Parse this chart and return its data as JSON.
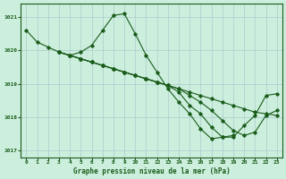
{
  "title": "Graphe pression niveau de la mer (hPa)",
  "bg_color": "#cceedd",
  "grid_color": "#aacccc",
  "line_color": "#1a5c1a",
  "xlim": [
    -0.5,
    23.5
  ],
  "ylim": [
    1016.8,
    1021.4
  ],
  "yticks": [
    1017,
    1018,
    1019,
    1020,
    1021
  ],
  "xticks": [
    0,
    1,
    2,
    3,
    4,
    5,
    6,
    7,
    8,
    9,
    10,
    11,
    12,
    13,
    14,
    15,
    16,
    17,
    18,
    19,
    20,
    21,
    22,
    23
  ],
  "series": [
    {
      "x": [
        0,
        1,
        2,
        3,
        4,
        5,
        6,
        7,
        8,
        9,
        10,
        11,
        12,
        13,
        14,
        15,
        16,
        17,
        18,
        19
      ],
      "y": [
        1020.6,
        1020.25,
        1020.1,
        1019.95,
        1019.85,
        1019.95,
        1020.15,
        1020.6,
        1021.05,
        1021.1,
        1020.5,
        1019.85,
        1019.35,
        1018.85,
        1018.45,
        1018.1,
        1017.65,
        1017.35,
        1017.4,
        1017.45
      ]
    },
    {
      "x": [
        3,
        4,
        5,
        6,
        7,
        8,
        9,
        10,
        11,
        12,
        13,
        14,
        15,
        16,
        17,
        18,
        19,
        20,
        21,
        22,
        23
      ],
      "y": [
        1019.95,
        1019.85,
        1019.75,
        1019.65,
        1019.55,
        1019.45,
        1019.35,
        1019.25,
        1019.15,
        1019.05,
        1018.95,
        1018.85,
        1018.75,
        1018.65,
        1018.55,
        1018.45,
        1018.35,
        1018.25,
        1018.15,
        1018.1,
        1018.05
      ]
    },
    {
      "x": [
        3,
        4,
        5,
        6,
        7,
        8,
        9,
        10,
        11,
        12,
        13,
        14,
        15,
        16,
        17,
        18,
        19,
        20,
        21,
        22,
        23
      ],
      "y": [
        1019.95,
        1019.85,
        1019.75,
        1019.65,
        1019.55,
        1019.45,
        1019.35,
        1019.25,
        1019.15,
        1019.05,
        1018.95,
        1018.85,
        1018.65,
        1018.45,
        1018.2,
        1017.9,
        1017.6,
        1017.45,
        1017.55,
        1018.05,
        1018.2
      ]
    },
    {
      "x": [
        3,
        4,
        5,
        6,
        7,
        8,
        9,
        10,
        11,
        12,
        13,
        14,
        15,
        16,
        17,
        18,
        19,
        20,
        21,
        22,
        23
      ],
      "y": [
        1019.95,
        1019.85,
        1019.75,
        1019.65,
        1019.55,
        1019.45,
        1019.35,
        1019.25,
        1019.15,
        1019.05,
        1018.95,
        1018.75,
        1018.35,
        1018.1,
        1017.7,
        1017.4,
        1017.4,
        1017.75,
        1018.05,
        1018.65,
        1018.7
      ]
    }
  ]
}
